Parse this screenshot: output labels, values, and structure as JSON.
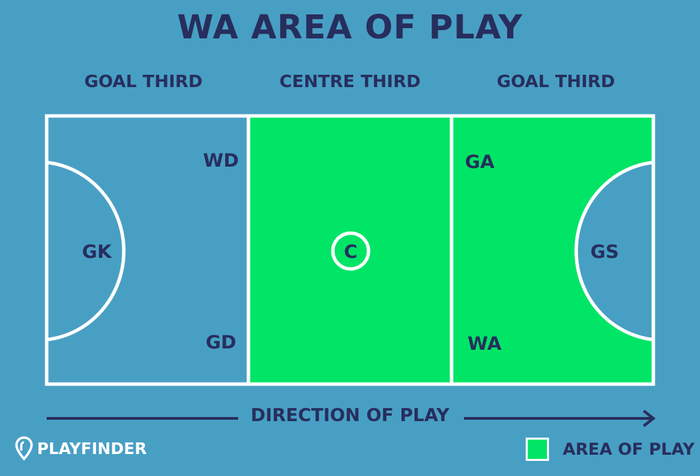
{
  "title": "WA AREA OF PLAY",
  "thirds": {
    "left": "GOAL THIRD",
    "centre": "CENTRE THIRD",
    "right": "GOAL THIRD"
  },
  "positions": {
    "wd": "WD",
    "gd": "GD",
    "gk": "GK",
    "c": "C",
    "ga": "GA",
    "wa": "WA",
    "gs": "GS"
  },
  "direction_of_play": "DIRECTION OF PLAY",
  "brand": "PLAYFINDER",
  "legend": {
    "label": "AREA OF PLAY",
    "color": "#00e566"
  },
  "colors": {
    "background": "#489fc4",
    "court_lines": "#ffffff",
    "text": "#272e5d",
    "highlight": "#00e566"
  },
  "highlighted_areas": [
    "centre third",
    "right goal third (excluding goal circle)"
  ]
}
